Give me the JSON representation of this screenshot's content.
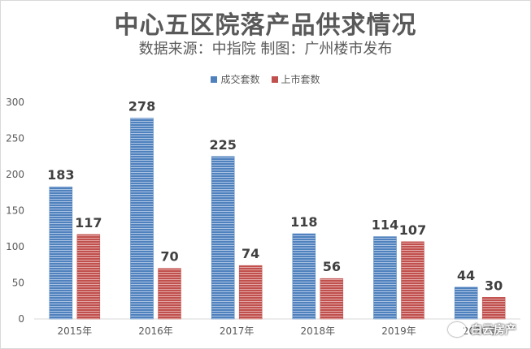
{
  "chart_data": {
    "type": "bar",
    "title": "中心五区院落产品供求情况",
    "subtitle": "数据来源：中指院 制图：广州楼市发布",
    "categories": [
      "2015年",
      "2016年",
      "2017年",
      "2018年",
      "2019年",
      "2020年"
    ],
    "series": [
      {
        "name": "成交套数",
        "values": [
          183,
          278,
          225,
          118,
          114,
          44
        ],
        "color": "#4f81bd"
      },
      {
        "name": "上市套数",
        "values": [
          117,
          70,
          74,
          56,
          107,
          30
        ],
        "color": "#c0504d"
      }
    ],
    "ylim": [
      0,
      300
    ],
    "yticks": [
      0,
      50,
      100,
      150,
      200,
      250,
      300
    ],
    "grid": false,
    "legend_position": "top-center",
    "data_labels": true
  },
  "watermark": {
    "text": "白云房产",
    "icon": "wechat-icon"
  }
}
